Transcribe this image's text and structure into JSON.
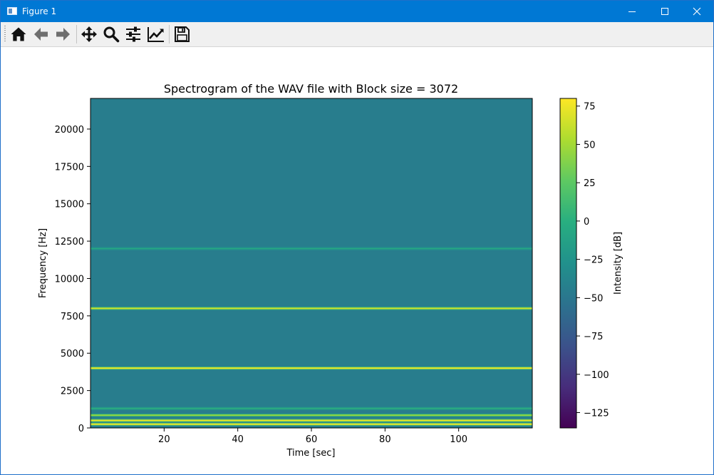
{
  "window": {
    "title": "Figure 1"
  },
  "toolbar": {
    "buttons": [
      {
        "name": "home",
        "icon": "home-icon"
      },
      {
        "name": "back",
        "icon": "arrow-left-icon"
      },
      {
        "name": "forward",
        "icon": "arrow-right-icon"
      },
      {
        "name": "pan",
        "icon": "move-icon"
      },
      {
        "name": "zoom",
        "icon": "magnifier-icon"
      },
      {
        "name": "configure-subplots",
        "icon": "sliders-icon"
      },
      {
        "name": "edit-axis",
        "icon": "line-chart-icon"
      },
      {
        "name": "save",
        "icon": "floppy-disk-icon"
      }
    ]
  },
  "chart_data": {
    "type": "heatmap",
    "title": "Spectrogram of the WAV file with Block size = 3072",
    "xlabel": "Time [sec]",
    "ylabel": "Frequency [Hz]",
    "xlim": [
      0,
      120
    ],
    "ylim": [
      0,
      22050
    ],
    "x_ticks": [
      20,
      40,
      60,
      80,
      100
    ],
    "y_ticks": [
      0,
      2500,
      5000,
      7500,
      10000,
      12500,
      15000,
      17500,
      20000
    ],
    "colorbar": {
      "label": "Intensity [dB]",
      "range": [
        -135,
        80
      ],
      "ticks": [
        75,
        50,
        25,
        0,
        -25,
        -50,
        -75,
        -100,
        -125
      ],
      "tick_labels": [
        "75",
        "50",
        "25",
        "0",
        "−25",
        "−50",
        "−75",
        "−100",
        "−125"
      ],
      "colormap": "viridis"
    },
    "background_level_db": -45,
    "tones": [
      {
        "frequency": 250,
        "level_db": 75
      },
      {
        "frequency": 500,
        "level_db": 75
      },
      {
        "frequency": 850,
        "level_db": 45
      },
      {
        "frequency": 1300,
        "level_db": 5
      },
      {
        "frequency": 4000,
        "level_db": 75
      },
      {
        "frequency": 8000,
        "level_db": 65
      },
      {
        "frequency": 12000,
        "level_db": -5
      }
    ]
  }
}
